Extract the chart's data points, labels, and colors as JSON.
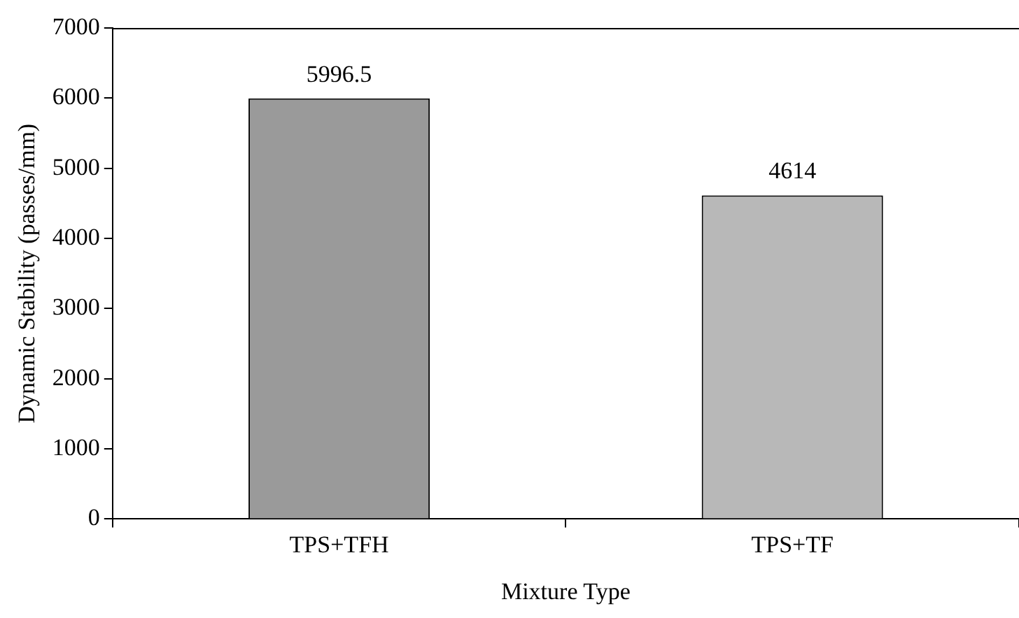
{
  "chart_data": {
    "type": "bar",
    "xlabel": "Mixture Type",
    "ylabel": "Dynamic Stability (passes/mm)",
    "categories": [
      "TPS+TFH",
      "TPS+TF"
    ],
    "values": [
      5996.5,
      4614
    ],
    "colors": [
      "#9a9a9a",
      "#b8b8b8"
    ],
    "ylim": [
      0,
      7000
    ],
    "yticks": [
      0,
      1000,
      2000,
      3000,
      4000,
      5000,
      6000,
      7000
    ],
    "grid": false,
    "legend": false,
    "data_labels": true
  }
}
